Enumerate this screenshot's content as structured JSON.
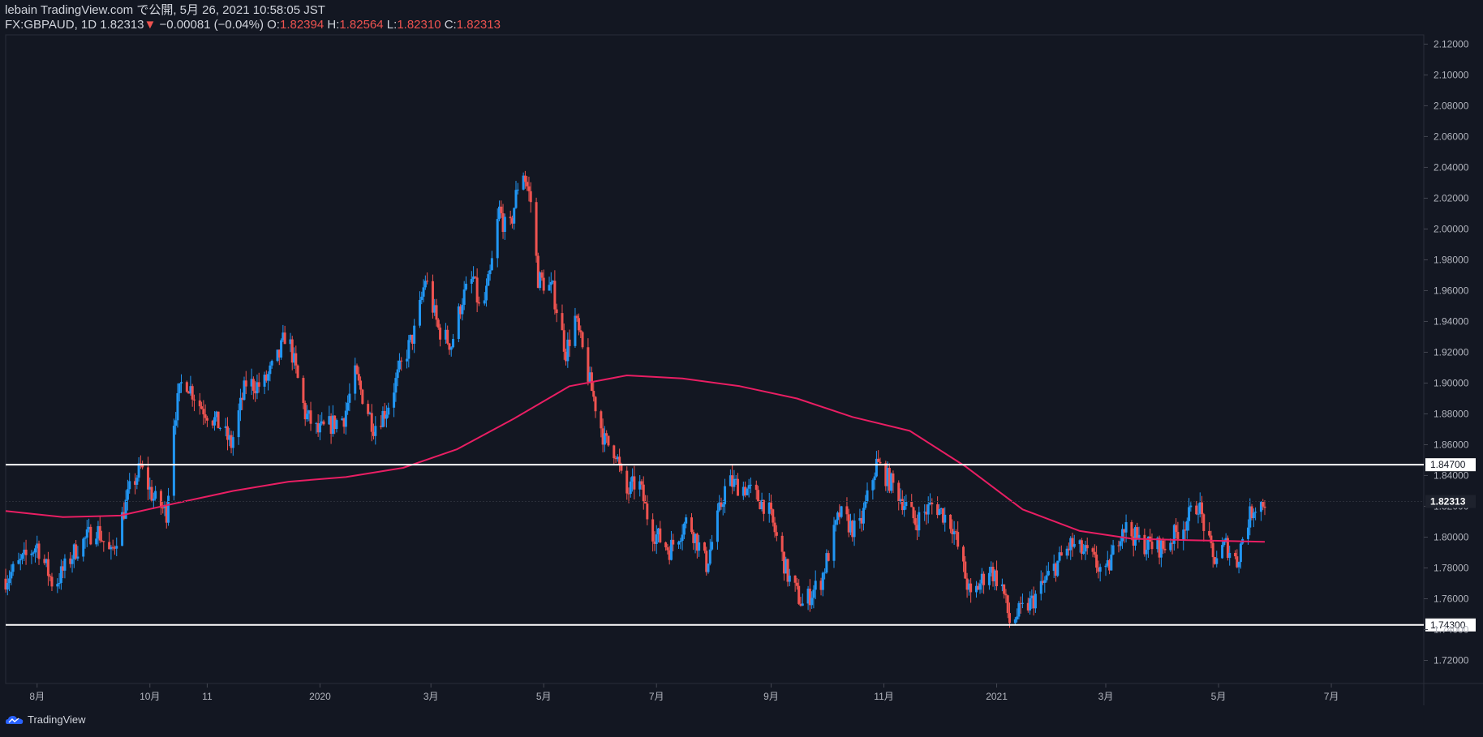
{
  "header": {
    "publisher_line": "lebain TradingView.com で公開, 5月 26, 2021 10:58:05 JST",
    "symbol": "FX:GBPAUD, 1D",
    "last_price": "1.82313",
    "change_arrow": "▼",
    "change": "−0.00081 (−0.04%)",
    "open_label": "O:",
    "open": "1.82394",
    "high_label": "H:",
    "high": "1.82564",
    "low_label": "L:",
    "low": "1.82310",
    "close_label": "C:",
    "close": "1.82313"
  },
  "footer": {
    "brand": "TradingView"
  },
  "colors": {
    "background": "#131722",
    "up": "#2196f3",
    "down": "#ef5350",
    "ma": "#e91e63",
    "level": "#ffffff",
    "axis_text": "#b2b5be"
  },
  "chart_data": {
    "type": "candlestick",
    "symbol": "FX:GBPAUD",
    "interval": "1D",
    "y_axis": {
      "range": [
        1.705,
        2.126
      ],
      "ticks": [
        "1.72000",
        "1.74000",
        "1.76000",
        "1.78000",
        "1.80000",
        "1.82000",
        "1.84000",
        "1.86000",
        "1.88000",
        "1.90000",
        "1.92000",
        "1.94000",
        "1.96000",
        "1.98000",
        "2.00000",
        "2.02000",
        "2.04000",
        "2.06000",
        "2.08000",
        "2.10000",
        "2.12000"
      ]
    },
    "x_axis": {
      "range": [
        "2019-07-15",
        "2021-08-20"
      ],
      "ticks": [
        {
          "date": "2019-08-01",
          "label": "8月"
        },
        {
          "date": "2019-10-01",
          "label": "10月"
        },
        {
          "date": "2019-11-01",
          "label": "11"
        },
        {
          "date": "2020-01-01",
          "label": "2020"
        },
        {
          "date": "2020-03-01",
          "label": "3月"
        },
        {
          "date": "2020-05-01",
          "label": "5月"
        },
        {
          "date": "2020-07-01",
          "label": "7月"
        },
        {
          "date": "2020-09-01",
          "label": "9月"
        },
        {
          "date": "2020-11-01",
          "label": "11月"
        },
        {
          "date": "2021-01-01",
          "label": "2021"
        },
        {
          "date": "2021-03-01",
          "label": "3月"
        },
        {
          "date": "2021-05-01",
          "label": "5月"
        },
        {
          "date": "2021-07-01",
          "label": "7月"
        }
      ]
    },
    "horizontal_levels": [
      {
        "value": 1.847,
        "label": "1.84700"
      },
      {
        "value": 1.743,
        "label": "1.74300"
      }
    ],
    "last_price": {
      "value": 1.82313,
      "label": "1.82313"
    },
    "price_path": [
      [
        "2019-07-15",
        1.773
      ],
      [
        "2019-08-01",
        1.795
      ],
      [
        "2019-08-10",
        1.768
      ],
      [
        "2019-08-22",
        1.792
      ],
      [
        "2019-09-02",
        1.806
      ],
      [
        "2019-09-10",
        1.788
      ],
      [
        "2019-09-20",
        1.83
      ],
      [
        "2019-09-26",
        1.845
      ],
      [
        "2019-10-03",
        1.825
      ],
      [
        "2019-10-10",
        1.816
      ],
      [
        "2019-10-14",
        1.876
      ],
      [
        "2019-10-19",
        1.905
      ],
      [
        "2019-10-28",
        1.886
      ],
      [
        "2019-11-08",
        1.872
      ],
      [
        "2019-11-14",
        1.86
      ],
      [
        "2019-11-22",
        1.9
      ],
      [
        "2019-12-01",
        1.898
      ],
      [
        "2019-12-10",
        1.918
      ],
      [
        "2019-12-14",
        1.935
      ],
      [
        "2019-12-24",
        1.88
      ],
      [
        "2019-12-31",
        1.868
      ],
      [
        "2020-01-14",
        1.878
      ],
      [
        "2020-01-20",
        1.905
      ],
      [
        "2020-01-30",
        1.872
      ],
      [
        "2020-02-06",
        1.883
      ],
      [
        "2020-02-13",
        1.908
      ],
      [
        "2020-02-22",
        1.936
      ],
      [
        "2020-02-27",
        1.968
      ],
      [
        "2020-03-05",
        1.935
      ],
      [
        "2020-03-12",
        1.925
      ],
      [
        "2020-03-18",
        1.955
      ],
      [
        "2020-03-24",
        1.968
      ],
      [
        "2020-03-28",
        1.942
      ],
      [
        "2020-04-02",
        1.97
      ],
      [
        "2020-04-07",
        2.012
      ],
      [
        "2020-04-12",
        1.994
      ],
      [
        "2020-04-19",
        2.042
      ],
      [
        "2020-04-24",
        2.018
      ],
      [
        "2020-04-28",
        1.968
      ],
      [
        "2020-05-06",
        1.96
      ],
      [
        "2020-05-13",
        1.92
      ],
      [
        "2020-05-18",
        1.942
      ],
      [
        "2020-05-26",
        1.9
      ],
      [
        "2020-06-03",
        1.862
      ],
      [
        "2020-06-09",
        1.856
      ],
      [
        "2020-06-14",
        1.826
      ],
      [
        "2020-06-21",
        1.838
      ],
      [
        "2020-06-28",
        1.805
      ],
      [
        "2020-07-08",
        1.792
      ],
      [
        "2020-07-18",
        1.812
      ],
      [
        "2020-07-28",
        1.782
      ],
      [
        "2020-08-08",
        1.836
      ],
      [
        "2020-08-18",
        1.832
      ],
      [
        "2020-08-30",
        1.82
      ],
      [
        "2020-09-10",
        1.775
      ],
      [
        "2020-09-18",
        1.756
      ],
      [
        "2020-09-28",
        1.772
      ],
      [
        "2020-10-08",
        1.815
      ],
      [
        "2020-10-18",
        1.802
      ],
      [
        "2020-10-28",
        1.848
      ],
      [
        "2020-11-08",
        1.83
      ],
      [
        "2020-11-18",
        1.81
      ],
      [
        "2020-11-28",
        1.822
      ],
      [
        "2020-12-08",
        1.808
      ],
      [
        "2020-12-18",
        1.76
      ],
      [
        "2020-12-28",
        1.78
      ],
      [
        "2021-01-04",
        1.768
      ],
      [
        "2021-01-08",
        1.745
      ],
      [
        "2021-01-20",
        1.758
      ],
      [
        "2021-02-01",
        1.78
      ],
      [
        "2021-02-10",
        1.795
      ],
      [
        "2021-02-20",
        1.788
      ],
      [
        "2021-03-01",
        1.775
      ],
      [
        "2021-03-10",
        1.808
      ],
      [
        "2021-03-20",
        1.796
      ],
      [
        "2021-04-01",
        1.793
      ],
      [
        "2021-04-12",
        1.808
      ],
      [
        "2021-04-20",
        1.822
      ],
      [
        "2021-04-28",
        1.785
      ],
      [
        "2021-05-05",
        1.795
      ],
      [
        "2021-05-11",
        1.784
      ],
      [
        "2021-05-15",
        1.805
      ],
      [
        "2021-05-20",
        1.82
      ],
      [
        "2021-05-26",
        1.8231
      ]
    ],
    "moving_average": [
      [
        "2019-07-15",
        1.817
      ],
      [
        "2019-08-15",
        1.813
      ],
      [
        "2019-09-15",
        1.814
      ],
      [
        "2019-10-15",
        1.822
      ],
      [
        "2019-11-15",
        1.83
      ],
      [
        "2019-12-15",
        1.836
      ],
      [
        "2020-01-15",
        1.839
      ],
      [
        "2020-02-15",
        1.845
      ],
      [
        "2020-03-15",
        1.857
      ],
      [
        "2020-04-15",
        1.877
      ],
      [
        "2020-05-15",
        1.898
      ],
      [
        "2020-06-15",
        1.905
      ],
      [
        "2020-07-15",
        1.903
      ],
      [
        "2020-08-15",
        1.898
      ],
      [
        "2020-09-15",
        1.89
      ],
      [
        "2020-10-15",
        1.878
      ],
      [
        "2020-11-15",
        1.869
      ],
      [
        "2020-12-15",
        1.846
      ],
      [
        "2021-01-15",
        1.818
      ],
      [
        "2021-02-15",
        1.804
      ],
      [
        "2021-03-15",
        1.799
      ],
      [
        "2021-04-15",
        1.798
      ],
      [
        "2021-05-26",
        1.797
      ]
    ]
  }
}
